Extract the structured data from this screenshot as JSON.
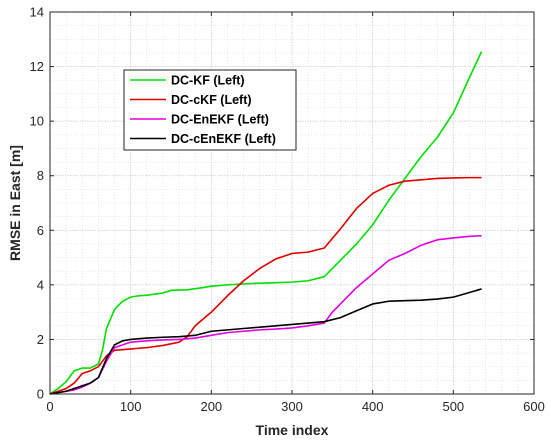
{
  "chart_data": {
    "type": "line",
    "title": "",
    "xlabel": "Time index",
    "ylabel": "RMSE in East [m]",
    "xlim": [
      0,
      600
    ],
    "ylim": [
      0,
      14
    ],
    "xticks": [
      0,
      100,
      200,
      300,
      400,
      500,
      600
    ],
    "yticks": [
      0,
      2,
      4,
      6,
      8,
      10,
      12,
      14
    ],
    "grid": true,
    "legend_position": "upper-left",
    "series": [
      {
        "name": "DC-KF (Left)",
        "color": "#00e000",
        "x": [
          0,
          10,
          20,
          30,
          40,
          50,
          60,
          65,
          70,
          80,
          90,
          100,
          110,
          120,
          140,
          150,
          170,
          190,
          200,
          220,
          250,
          280,
          300,
          320,
          340,
          360,
          380,
          400,
          420,
          440,
          460,
          480,
          500,
          520,
          535
        ],
        "y": [
          0,
          0.2,
          0.45,
          0.85,
          0.95,
          0.95,
          1.1,
          1.6,
          2.4,
          3.1,
          3.4,
          3.55,
          3.6,
          3.62,
          3.7,
          3.8,
          3.82,
          3.9,
          3.95,
          4.0,
          4.05,
          4.08,
          4.1,
          4.15,
          4.3,
          4.9,
          5.5,
          6.2,
          7.1,
          7.9,
          8.7,
          9.4,
          10.3,
          11.6,
          12.55
        ]
      },
      {
        "name": "DC-cKF (Left)",
        "color": "#e00000",
        "x": [
          0,
          10,
          20,
          30,
          40,
          50,
          60,
          70,
          80,
          100,
          120,
          140,
          160,
          170,
          180,
          200,
          220,
          240,
          260,
          280,
          300,
          320,
          340,
          350,
          360,
          380,
          400,
          420,
          440,
          460,
          480,
          500,
          520,
          535
        ],
        "y": [
          0,
          0.1,
          0.2,
          0.4,
          0.75,
          0.85,
          1.0,
          1.4,
          1.6,
          1.65,
          1.7,
          1.78,
          1.9,
          2.1,
          2.5,
          3.0,
          3.6,
          4.15,
          4.6,
          4.95,
          5.15,
          5.2,
          5.35,
          5.7,
          6.05,
          6.8,
          7.35,
          7.65,
          7.8,
          7.85,
          7.9,
          7.92,
          7.93,
          7.93
        ]
      },
      {
        "name": "DC-EnEKF (Left)",
        "color": "#e000e0",
        "x": [
          0,
          10,
          20,
          30,
          40,
          50,
          60,
          70,
          80,
          100,
          120,
          140,
          160,
          180,
          200,
          220,
          240,
          260,
          280,
          300,
          320,
          340,
          350,
          360,
          380,
          400,
          420,
          440,
          460,
          480,
          500,
          520,
          535
        ],
        "y": [
          0,
          0.05,
          0.1,
          0.15,
          0.25,
          0.4,
          0.6,
          1.2,
          1.7,
          1.9,
          1.95,
          1.98,
          2.0,
          2.05,
          2.15,
          2.25,
          2.3,
          2.35,
          2.38,
          2.42,
          2.5,
          2.6,
          3.0,
          3.3,
          3.9,
          4.4,
          4.9,
          5.15,
          5.45,
          5.65,
          5.72,
          5.78,
          5.8
        ]
      },
      {
        "name": "DC-cEnEKF (Left)",
        "color": "#000000",
        "x": [
          0,
          10,
          20,
          30,
          40,
          50,
          60,
          70,
          80,
          90,
          100,
          120,
          140,
          160,
          180,
          200,
          220,
          240,
          260,
          280,
          300,
          320,
          340,
          360,
          380,
          400,
          420,
          440,
          460,
          480,
          500,
          520,
          535
        ],
        "y": [
          0,
          0.05,
          0.1,
          0.2,
          0.3,
          0.4,
          0.6,
          1.3,
          1.8,
          1.95,
          2.0,
          2.05,
          2.08,
          2.1,
          2.15,
          2.3,
          2.35,
          2.4,
          2.45,
          2.5,
          2.55,
          2.6,
          2.65,
          2.8,
          3.05,
          3.3,
          3.4,
          3.42,
          3.44,
          3.48,
          3.55,
          3.72,
          3.85
        ]
      }
    ]
  }
}
